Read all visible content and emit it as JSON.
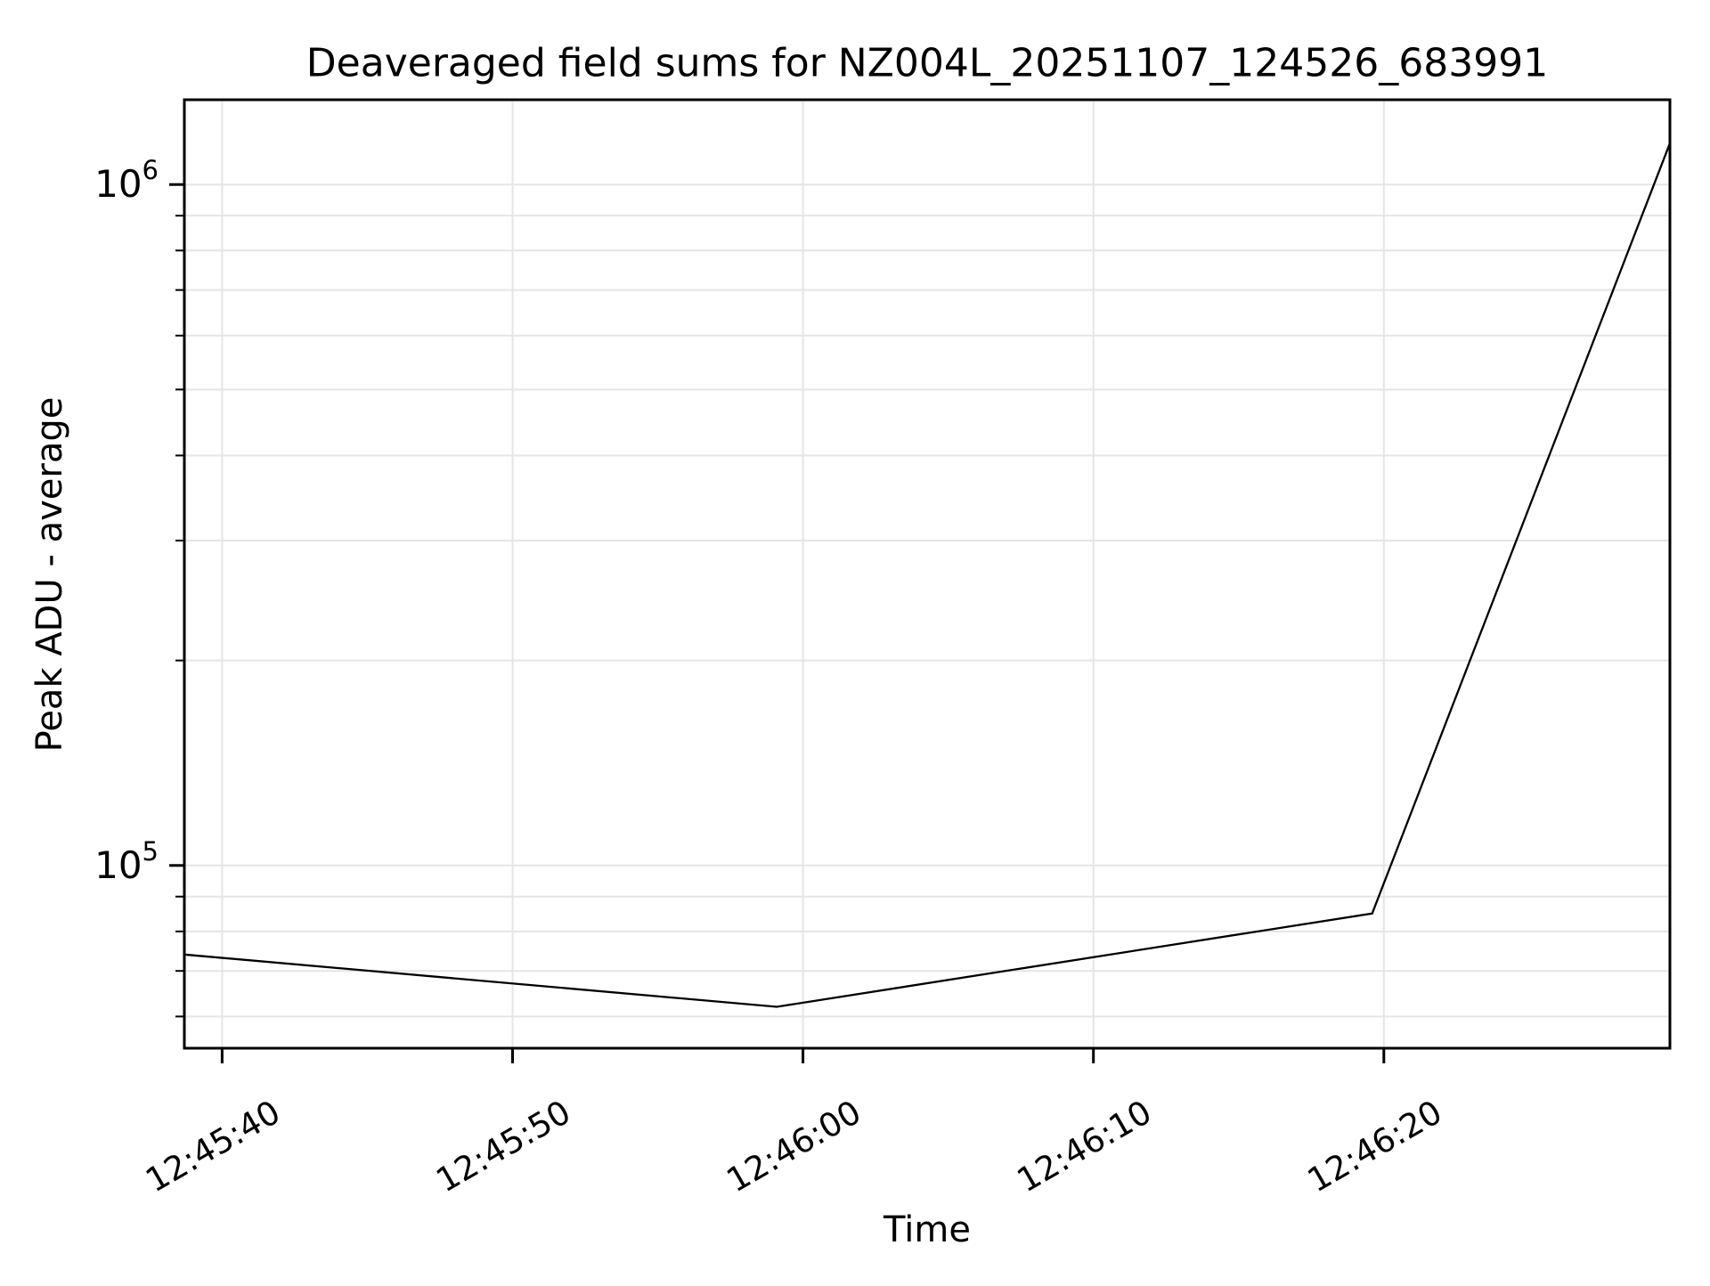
{
  "chart_data": {
    "type": "line",
    "title": "Deaveraged field sums for NZ004L_20251107_124526_683991",
    "xlabel": "Time",
    "ylabel": "Peak ADU - average",
    "yscale": "log",
    "grid": true,
    "legend_position": "none",
    "line_color": "#000000",
    "grid_color": "#e5e5e5",
    "axis_color": "#000000",
    "x_time_origin": "12:45:00",
    "x_ticks": [
      {
        "seconds": 40,
        "label": "12:45:40"
      },
      {
        "seconds": 50,
        "label": "12:45:50"
      },
      {
        "seconds": 60,
        "label": "12:46:00"
      },
      {
        "seconds": 70,
        "label": "12:46:10"
      },
      {
        "seconds": 80,
        "label": "12:46:20"
      }
    ],
    "y_major_ticks": [
      {
        "value": 100000,
        "base": "10",
        "exp": "5"
      },
      {
        "value": 1000000,
        "base": "10",
        "exp": "6"
      }
    ],
    "y_minor_ticks": [
      60000,
      70000,
      80000,
      90000,
      200000,
      300000,
      400000,
      500000,
      600000,
      700000,
      800000,
      900000
    ],
    "axes": {
      "xlim_seconds": [
        38.7,
        89.85
      ],
      "ylim": [
        53900,
        1332000
      ]
    },
    "series": [
      {
        "name": "Peak ADU - average",
        "points": [
          {
            "time": "12:45:39",
            "seconds": 38.7,
            "value": 74000
          },
          {
            "time": "12:45:59",
            "seconds": 59.1,
            "value": 62000
          },
          {
            "time": "12:46:20",
            "seconds": 79.6,
            "value": 85000
          },
          {
            "time": "12:46:30",
            "seconds": 89.85,
            "value": 1150000
          }
        ]
      }
    ]
  }
}
